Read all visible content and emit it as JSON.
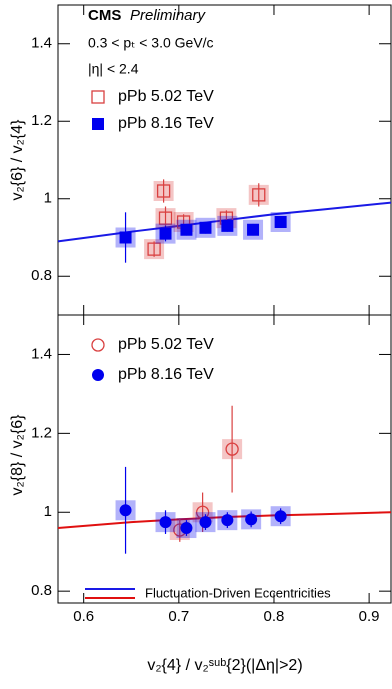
{
  "chart_data": [
    {
      "type": "scatter",
      "cms": "CMS",
      "preliminary": "Preliminary",
      "cuts": [
        "0.3 < pₜ < 3.0 GeV/c",
        "|η| < 2.4"
      ],
      "ylabel": "v₂{6} / v₂{4}",
      "marker": "square",
      "xlim": [
        0.573,
        0.923
      ],
      "xticks": [
        0.6,
        0.7,
        0.8,
        0.9
      ],
      "ylim": [
        0.7,
        1.5
      ],
      "yticks": [
        0.8,
        1,
        1.2,
        1.4
      ],
      "series": [
        {
          "name": "pPb 5.02 TeV",
          "color": "#d94040",
          "filled": false,
          "x": [
            0.674,
            0.684,
            0.686,
            0.705,
            0.75,
            0.784
          ],
          "values": [
            0.87,
            1.02,
            0.95,
            0.94,
            0.95,
            1.01
          ],
          "errors": [
            0.02,
            0.03,
            0.03,
            0.02,
            0.02,
            0.03
          ]
        },
        {
          "name": "pPb 8.16 TeV",
          "color": "#0000ee",
          "filled": true,
          "x": [
            0.644,
            0.686,
            0.708,
            0.728,
            0.751,
            0.778,
            0.807
          ],
          "values": [
            0.9,
            0.91,
            0.92,
            0.925,
            0.93,
            0.92,
            0.94
          ],
          "errors": [
            0.065,
            0.02,
            0.015,
            0.015,
            0.015,
            0.015,
            0.015
          ]
        }
      ],
      "curve": {
        "color": "#1a1ae6",
        "x": [
          0.573,
          0.65,
          0.7,
          0.75,
          0.8,
          0.85,
          0.923
        ],
        "values": [
          0.89,
          0.915,
          0.93,
          0.945,
          0.96,
          0.972,
          0.99
        ]
      }
    },
    {
      "type": "scatter",
      "ylabel": "v₂{8} / v₂{6}",
      "xlabel": "v₂{4} / v₂ˢᵘᵇ{2}(|Δη|>2)",
      "marker": "circle",
      "xlim": [
        0.573,
        0.923
      ],
      "xticks": [
        0.6,
        0.7,
        0.8,
        0.9
      ],
      "ylim": [
        0.77,
        1.5
      ],
      "yticks": [
        0.8,
        1,
        1.2,
        1.4
      ],
      "series": [
        {
          "name": "pPb 5.02 TeV",
          "color": "#d94040",
          "filled": false,
          "x": [
            0.701,
            0.725,
            0.756
          ],
          "values": [
            0.955,
            1.0,
            1.16
          ],
          "errors": [
            0.03,
            0.05,
            0.11
          ]
        },
        {
          "name": "pPb 8.16 TeV",
          "color": "#0000ee",
          "filled": true,
          "x": [
            0.644,
            0.686,
            0.708,
            0.728,
            0.751,
            0.776,
            0.807
          ],
          "values": [
            1.005,
            0.975,
            0.96,
            0.975,
            0.98,
            0.982,
            0.99
          ],
          "errors": [
            0.11,
            0.03,
            0.02,
            0.02,
            0.02,
            0.02,
            0.02
          ]
        }
      ],
      "curve": {
        "color": "#e01010",
        "x": [
          0.573,
          0.65,
          0.7,
          0.75,
          0.8,
          0.85,
          0.923
        ],
        "values": [
          0.96,
          0.975,
          0.982,
          0.988,
          0.992,
          0.995,
          1.0
        ]
      },
      "model_label": "Fluctuation-Driven Eccentricities",
      "model_colors": [
        "#1a1ae6",
        "#e01010"
      ]
    }
  ]
}
